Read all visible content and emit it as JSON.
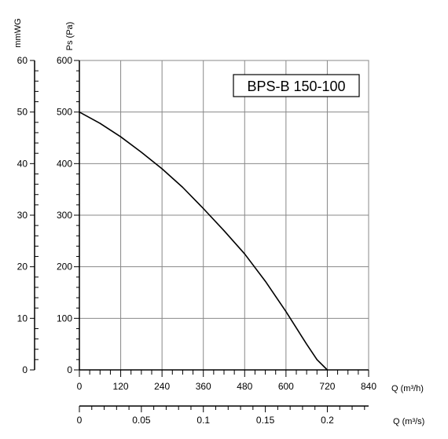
{
  "chart_data": {
    "type": "line",
    "title": "BPS-B 150-100",
    "axes": {
      "y_left_outer": {
        "label": "mmWG",
        "ticks": [
          "0",
          "10",
          "20",
          "30",
          "40",
          "50",
          "60"
        ],
        "range": [
          0,
          60
        ]
      },
      "y_left_inner": {
        "label": "Ps (Pa)",
        "ticks": [
          "0",
          "100",
          "200",
          "300",
          "400",
          "500",
          "600"
        ],
        "range": [
          0,
          600
        ]
      },
      "x_primary": {
        "label": "Q (m³/h)",
        "ticks": [
          "0",
          "120",
          "240",
          "360",
          "480",
          "600",
          "720",
          "840"
        ],
        "range": [
          0,
          840
        ]
      },
      "x_secondary": {
        "label": "Q (m³/s)",
        "ticks": [
          "0",
          "0.05",
          "0.1",
          "0.15",
          "0.2"
        ],
        "range": [
          0,
          0.2333
        ]
      }
    },
    "grid": true,
    "series": [
      {
        "x": [
          0,
          60,
          120,
          180,
          240,
          300,
          360,
          420,
          480,
          540,
          600,
          660,
          690,
          720
        ],
        "y": [
          500,
          478,
          452,
          422,
          390,
          354,
          313,
          270,
          225,
          172,
          113,
          50,
          20,
          0
        ]
      }
    ]
  }
}
